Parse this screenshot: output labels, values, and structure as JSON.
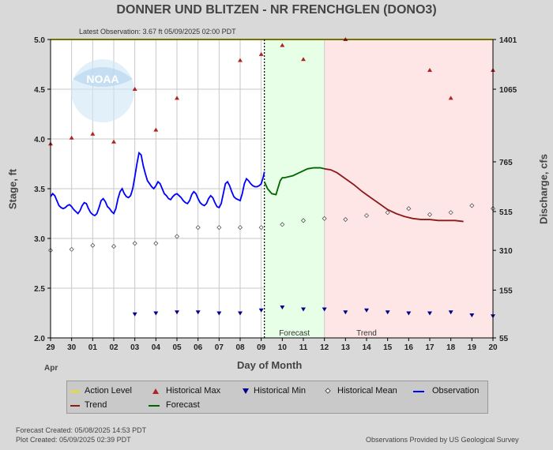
{
  "header": {
    "title": "DONNER UND BLITZEN - NR FRENCHGLEN  (DONO3)",
    "latest_observation": "Latest Observation: 3.67 ft 05/09/2025 02:00 PDT"
  },
  "footer": {
    "forecast_created": "Forecast Created: 05/08/2025 14:53 PDT",
    "plot_created": "Plot Created: 05/09/2025 02:39 PDT",
    "credit": "Observations Provided by US Geological Survey"
  },
  "logo": {
    "text": "NOAA"
  },
  "colors": {
    "observation": "#0000ff",
    "forecast": "#006400",
    "trend": "#8b1a1a",
    "action_level": "#e6e600",
    "historical_max": "#b22222",
    "historical_min": "#00008b",
    "historical_mean": "#555555",
    "forecast_band": "#e6ffe6",
    "trend_band": "#ffe6e6"
  },
  "chart_data": {
    "type": "line",
    "xlabel": "Day of Month",
    "ylabel": "Stage, ft",
    "y2label": "Discharge, cfs",
    "month_label": "Apr",
    "x_tick_labels": [
      "29",
      "30",
      "01",
      "02",
      "03",
      "04",
      "05",
      "06",
      "07",
      "08",
      "09",
      "10",
      "11",
      "12",
      "13",
      "14",
      "15",
      "16",
      "17",
      "18",
      "19",
      "20"
    ],
    "ylim": [
      2.0,
      5.0
    ],
    "y_ticks": [
      "2.0",
      "2.5",
      "3.0",
      "3.5",
      "4.0",
      "4.5",
      "5.0"
    ],
    "y2_ticks": [
      {
        "stage": 2.0,
        "label": "55"
      },
      {
        "stage": 2.48,
        "label": "155"
      },
      {
        "stage": 2.88,
        "label": "310"
      },
      {
        "stage": 3.27,
        "label": "515"
      },
      {
        "stage": 3.77,
        "label": "765"
      },
      {
        "stage": 4.5,
        "label": "1065"
      },
      {
        "stage": 5.0,
        "label": "1401"
      }
    ],
    "grid": true,
    "legend_position": "bottom",
    "regions": [
      {
        "label": "Forecast",
        "x_start": 10.15,
        "x_end": 13.0
      },
      {
        "label": "Trend",
        "x_start": 13.0,
        "x_end": 21.0
      }
    ],
    "now_x": 10.15,
    "action_level": 5.0,
    "historical_max": [
      {
        "x": 0,
        "y": 3.95
      },
      {
        "x": 1,
        "y": 4.01
      },
      {
        "x": 2,
        "y": 4.05
      },
      {
        "x": 3,
        "y": 3.97
      },
      {
        "x": 4,
        "y": 4.5
      },
      {
        "x": 5,
        "y": 4.09
      },
      {
        "x": 6,
        "y": 4.41
      },
      {
        "x": 9,
        "y": 4.79
      },
      {
        "x": 10,
        "y": 4.85
      },
      {
        "x": 11,
        "y": 4.94
      },
      {
        "x": 12,
        "y": 4.8
      },
      {
        "x": 14,
        "y": 5.0
      },
      {
        "x": 18,
        "y": 4.69
      },
      {
        "x": 19,
        "y": 4.41
      },
      {
        "x": 21,
        "y": 4.69
      }
    ],
    "historical_min": [
      {
        "x": 4,
        "y": 2.24
      },
      {
        "x": 5,
        "y": 2.25
      },
      {
        "x": 6,
        "y": 2.26
      },
      {
        "x": 7,
        "y": 2.26
      },
      {
        "x": 8,
        "y": 2.25
      },
      {
        "x": 9,
        "y": 2.25
      },
      {
        "x": 10,
        "y": 2.28
      },
      {
        "x": 11,
        "y": 2.31
      },
      {
        "x": 12,
        "y": 2.29
      },
      {
        "x": 13,
        "y": 2.29
      },
      {
        "x": 14,
        "y": 2.26
      },
      {
        "x": 15,
        "y": 2.28
      },
      {
        "x": 16,
        "y": 2.26
      },
      {
        "x": 17,
        "y": 2.25
      },
      {
        "x": 18,
        "y": 2.25
      },
      {
        "x": 19,
        "y": 2.26
      },
      {
        "x": 20,
        "y": 2.23
      },
      {
        "x": 21,
        "y": 2.22
      }
    ],
    "historical_mean": [
      {
        "x": 0,
        "y": 2.88
      },
      {
        "x": 1,
        "y": 2.89
      },
      {
        "x": 2,
        "y": 2.93
      },
      {
        "x": 3,
        "y": 2.92
      },
      {
        "x": 4,
        "y": 2.95
      },
      {
        "x": 5,
        "y": 2.95
      },
      {
        "x": 6,
        "y": 3.02
      },
      {
        "x": 7,
        "y": 3.11
      },
      {
        "x": 8,
        "y": 3.11
      },
      {
        "x": 9,
        "y": 3.11
      },
      {
        "x": 10,
        "y": 3.11
      },
      {
        "x": 11,
        "y": 3.14
      },
      {
        "x": 12,
        "y": 3.18
      },
      {
        "x": 13,
        "y": 3.2
      },
      {
        "x": 14,
        "y": 3.19
      },
      {
        "x": 15,
        "y": 3.23
      },
      {
        "x": 16,
        "y": 3.26
      },
      {
        "x": 17,
        "y": 3.3
      },
      {
        "x": 18,
        "y": 3.24
      },
      {
        "x": 19,
        "y": 3.26
      },
      {
        "x": 20,
        "y": 3.33
      },
      {
        "x": 21,
        "y": 3.3
      }
    ],
    "observation": {
      "x": [
        0,
        0.1,
        0.2,
        0.3,
        0.4,
        0.5,
        0.6,
        0.7,
        0.8,
        0.9,
        1.0,
        1.1,
        1.2,
        1.3,
        1.4,
        1.5,
        1.6,
        1.7,
        1.8,
        1.9,
        2.0,
        2.1,
        2.2,
        2.3,
        2.4,
        2.5,
        2.6,
        2.7,
        2.8,
        2.9,
        3.0,
        3.1,
        3.2,
        3.3,
        3.4,
        3.5,
        3.6,
        3.7,
        3.8,
        3.9,
        4.0,
        4.1,
        4.2,
        4.3,
        4.4,
        4.5,
        4.6,
        4.7,
        4.8,
        4.9,
        5.0,
        5.1,
        5.2,
        5.3,
        5.4,
        5.5,
        5.6,
        5.7,
        5.8,
        5.9,
        6.0,
        6.1,
        6.2,
        6.3,
        6.4,
        6.5,
        6.6,
        6.7,
        6.8,
        6.9,
        7.0,
        7.1,
        7.2,
        7.3,
        7.4,
        7.5,
        7.6,
        7.7,
        7.8,
        7.9,
        8.0,
        8.1,
        8.2,
        8.3,
        8.4,
        8.5,
        8.6,
        8.7,
        8.8,
        8.9,
        9.0,
        9.1,
        9.2,
        9.3,
        9.4,
        9.5,
        9.6,
        9.7,
        9.8,
        9.9,
        10.0,
        10.1,
        10.15
      ],
      "y": [
        3.42,
        3.45,
        3.43,
        3.38,
        3.33,
        3.31,
        3.3,
        3.31,
        3.33,
        3.34,
        3.32,
        3.29,
        3.27,
        3.25,
        3.28,
        3.33,
        3.36,
        3.35,
        3.3,
        3.26,
        3.24,
        3.23,
        3.25,
        3.31,
        3.38,
        3.4,
        3.37,
        3.32,
        3.3,
        3.27,
        3.25,
        3.3,
        3.4,
        3.47,
        3.5,
        3.45,
        3.42,
        3.41,
        3.43,
        3.5,
        3.62,
        3.75,
        3.86,
        3.84,
        3.73,
        3.65,
        3.58,
        3.55,
        3.52,
        3.5,
        3.53,
        3.57,
        3.55,
        3.5,
        3.45,
        3.43,
        3.4,
        3.39,
        3.42,
        3.44,
        3.45,
        3.43,
        3.41,
        3.38,
        3.36,
        3.35,
        3.38,
        3.44,
        3.47,
        3.45,
        3.4,
        3.36,
        3.34,
        3.33,
        3.35,
        3.4,
        3.43,
        3.41,
        3.36,
        3.32,
        3.31,
        3.35,
        3.45,
        3.55,
        3.57,
        3.53,
        3.47,
        3.42,
        3.4,
        3.39,
        3.38,
        3.45,
        3.55,
        3.6,
        3.58,
        3.55,
        3.53,
        3.52,
        3.52,
        3.53,
        3.55,
        3.62,
        3.67
      ]
    },
    "forecast": {
      "x": [
        10.15,
        10.3,
        10.5,
        10.7,
        10.9,
        11.0,
        11.1,
        11.3,
        11.5,
        11.8,
        12.0,
        12.2,
        12.5,
        12.8,
        13.0
      ],
      "y": [
        3.57,
        3.5,
        3.45,
        3.44,
        3.58,
        3.61,
        3.61,
        3.62,
        3.63,
        3.66,
        3.68,
        3.7,
        3.71,
        3.71,
        3.7
      ]
    },
    "trend": {
      "x": [
        13.0,
        13.3,
        13.6,
        14.0,
        14.4,
        14.8,
        15.2,
        15.6,
        16.0,
        16.4,
        16.8,
        17.2,
        17.6,
        18.0,
        18.4,
        18.8,
        19.2,
        19.6
      ],
      "y": [
        3.7,
        3.69,
        3.66,
        3.6,
        3.54,
        3.47,
        3.41,
        3.35,
        3.29,
        3.25,
        3.22,
        3.2,
        3.19,
        3.19,
        3.18,
        3.18,
        3.18,
        3.17
      ]
    }
  },
  "legend": {
    "action_level": "Action Level",
    "historical_max": "Historical Max",
    "historical_min": "Historical Min",
    "historical_mean": "Historical Mean",
    "observation": "Observation",
    "trend": "Trend",
    "forecast": "Forecast"
  }
}
